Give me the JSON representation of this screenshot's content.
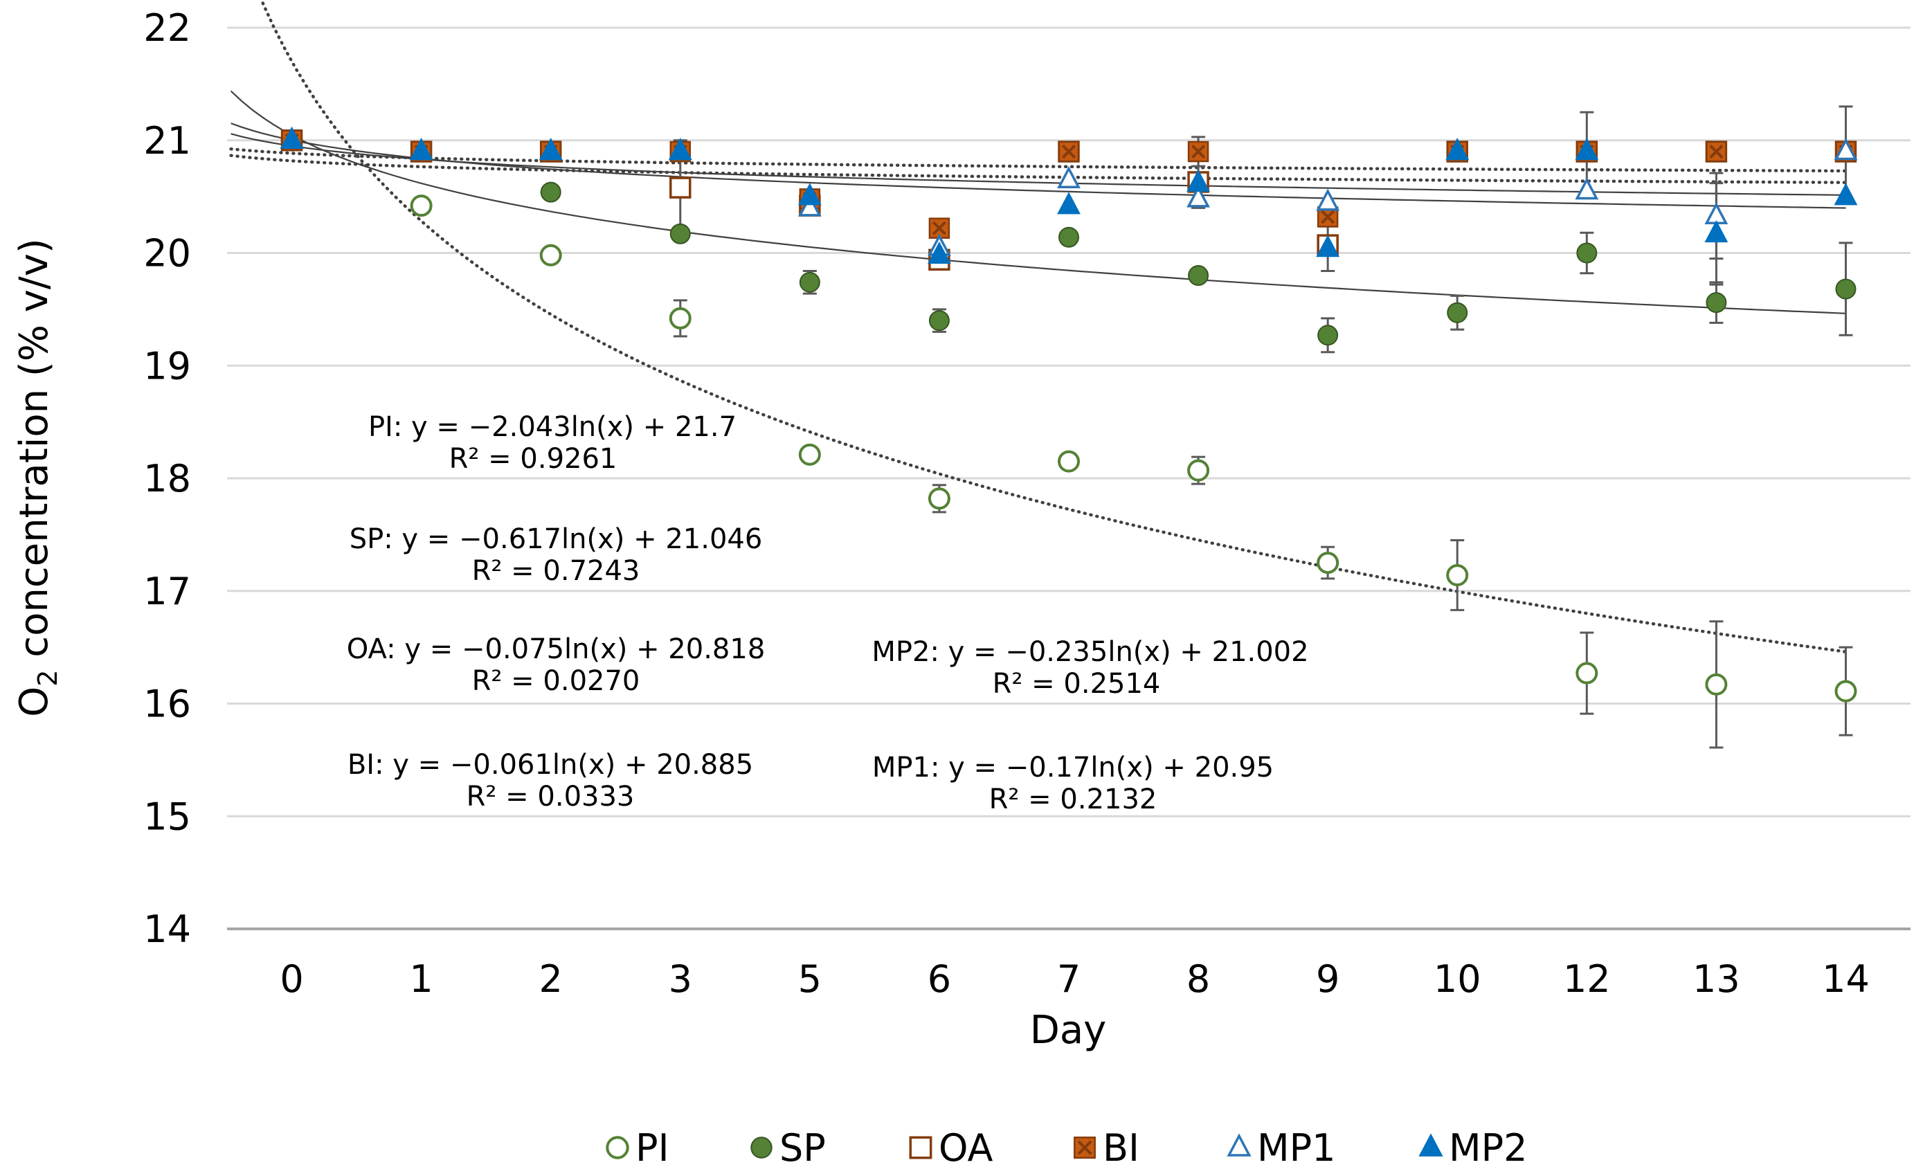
{
  "chart_data": {
    "type": "scatter",
    "title": "",
    "xlabel": "Day",
    "ylabel": "O2 concentration (% v/v)",
    "ylabel_parts": {
      "prefix": "O",
      "subscript": "2",
      "suffix": " concentration  (% v/v)"
    },
    "ylim": [
      14,
      22
    ],
    "yticks": [
      "14",
      "15",
      "16",
      "17",
      "18",
      "19",
      "20",
      "21",
      "22"
    ],
    "categories": [
      "0",
      "1",
      "2",
      "3",
      "5",
      "6",
      "7",
      "8",
      "9",
      "10",
      "12",
      "13",
      "14"
    ],
    "grid": true,
    "legend_position": "bottom",
    "series": [
      {
        "name": "PI",
        "marker": "circle-open",
        "color": "#548235",
        "fit_style": "dotted",
        "values": [
          21.0,
          20.42,
          19.98,
          19.42,
          18.21,
          17.82,
          18.15,
          18.07,
          17.25,
          17.14,
          16.27,
          16.17,
          16.11
        ],
        "errors": [
          0,
          0,
          0,
          0.16,
          0,
          0.12,
          0,
          0.12,
          0.14,
          0.31,
          0.36,
          0.56,
          0.39
        ],
        "fit": {
          "a": -2.043,
          "b": 21.7
        }
      },
      {
        "name": "SP",
        "marker": "circle-filled",
        "color": "#548235",
        "fit_style": "solid",
        "values": [
          21.0,
          20.9,
          20.54,
          20.17,
          19.74,
          19.4,
          20.14,
          19.8,
          19.27,
          19.47,
          20.0,
          19.56,
          19.68
        ],
        "errors": [
          0,
          0,
          0,
          0,
          0.1,
          0.1,
          0,
          0,
          0.15,
          0.15,
          0.18,
          0.18,
          0.41
        ],
        "fit": {
          "a": -0.617,
          "b": 21.046
        }
      },
      {
        "name": "OA",
        "marker": "square-open",
        "color": "#843c0c",
        "fit_style": "dotted",
        "values": [
          21.0,
          20.9,
          20.9,
          20.58,
          20.42,
          19.94,
          20.9,
          20.63,
          20.07,
          20.9,
          20.9,
          20.9,
          20.9
        ],
        "errors": [
          0,
          0,
          0,
          0.42,
          0,
          0,
          0,
          0,
          0,
          0,
          0,
          0,
          0
        ],
        "fit": {
          "a": -0.075,
          "b": 20.818
        }
      },
      {
        "name": "BI",
        "marker": "x-square",
        "color": "#c55a11",
        "fit_style": "dotted",
        "values": [
          21.0,
          20.9,
          20.9,
          20.9,
          20.48,
          20.22,
          20.9,
          20.9,
          20.32,
          20.9,
          20.9,
          20.9,
          20.9
        ],
        "errors": [
          0,
          0,
          0,
          0,
          0,
          0,
          0,
          0.13,
          0,
          0,
          0.35,
          0,
          0.4
        ],
        "fit": {
          "a": -0.061,
          "b": 20.885
        }
      },
      {
        "name": "MP1",
        "marker": "triangle-open",
        "color": "#2e75b6",
        "fit_style": "solid",
        "values": [
          21.0,
          20.9,
          20.9,
          20.9,
          20.4,
          20.05,
          20.65,
          20.48,
          20.45,
          20.9,
          20.55,
          20.33,
          20.9
        ],
        "errors": [
          0,
          0,
          0,
          0,
          0,
          0,
          0,
          0,
          0,
          0,
          0,
          0.38,
          0
        ],
        "fit": {
          "a": -0.17,
          "b": 20.95
        }
      },
      {
        "name": "MP2",
        "marker": "triangle-filled",
        "color": "#0070c0",
        "fit_style": "solid",
        "values": [
          21.0,
          20.9,
          20.9,
          20.9,
          20.5,
          19.98,
          20.42,
          20.62,
          20.04,
          20.9,
          20.9,
          20.17,
          20.5
        ],
        "errors": [
          0,
          0,
          0,
          0,
          0,
          0,
          0,
          0.22,
          0.2,
          0,
          0,
          0.45,
          0
        ],
        "fit": {
          "a": -0.235,
          "b": 21.002
        }
      }
    ],
    "annotations": [
      {
        "series": "PI",
        "equation": "PI: y = −2.043ln(x) + 21.7",
        "r2": "R² = 0.9261"
      },
      {
        "series": "SP",
        "equation": "SP: y = −0.617ln(x) + 21.046",
        "r2": "R² = 0.7243"
      },
      {
        "series": "OA",
        "equation": "OA: y = −0.075ln(x) + 20.818",
        "r2": "R² = 0.0270"
      },
      {
        "series": "BI",
        "equation": "BI: y = −0.061ln(x) + 20.885",
        "r2": "R² = 0.0333"
      },
      {
        "series": "MP2",
        "equation": "MP2: y = −0.235ln(x) + 21.002",
        "r2": "R² = 0.2514"
      },
      {
        "series": "MP1",
        "equation": "MP1: y = −0.17ln(x) + 20.95",
        "r2": "R² = 0.2132"
      }
    ]
  }
}
